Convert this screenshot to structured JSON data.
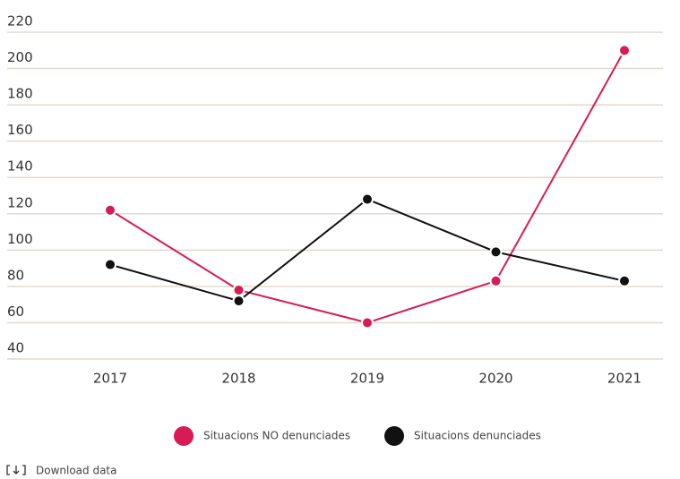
{
  "chart_data": {
    "type": "line",
    "categories": [
      "2017",
      "2018",
      "2019",
      "2020",
      "2021"
    ],
    "series": [
      {
        "name": "Situacions NO denunciades",
        "color": "#d81b55",
        "values": [
          122,
          78,
          60,
          83,
          210
        ]
      },
      {
        "name": "Situacions denunciades",
        "color": "#111111",
        "values": [
          92,
          72,
          128,
          99,
          83
        ]
      }
    ],
    "ylim": [
      40,
      220
    ],
    "yticks": [
      40,
      60,
      80,
      100,
      120,
      140,
      160,
      180,
      200,
      220
    ],
    "grid": true,
    "legend": "bottom"
  },
  "footer": {
    "download": "Download data"
  }
}
